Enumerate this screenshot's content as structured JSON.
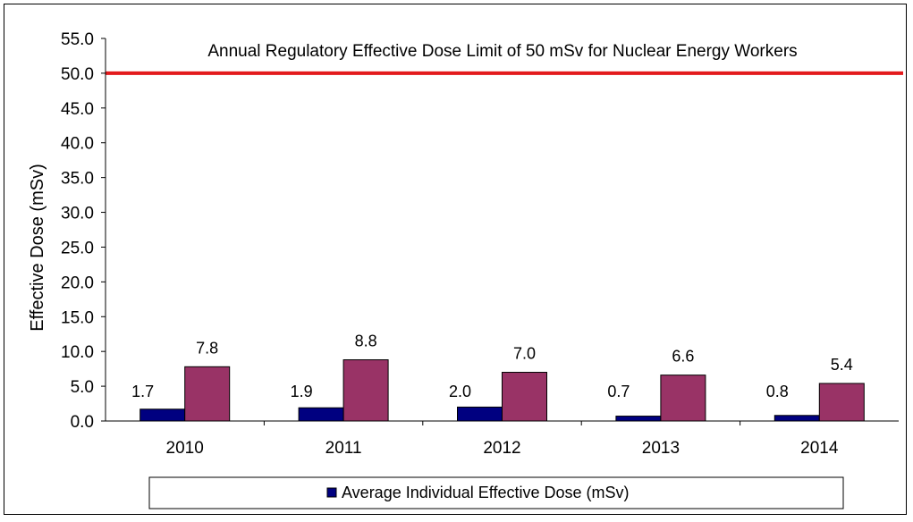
{
  "chart_data": {
    "type": "bar",
    "title": "",
    "xlabel": "",
    "ylabel": "Effective Dose (mSv)",
    "ylim": [
      0,
      55
    ],
    "ytick_step": 5,
    "yticks": [
      "0.0",
      "5.0",
      "10.0",
      "15.0",
      "20.0",
      "25.0",
      "30.0",
      "35.0",
      "40.0",
      "45.0",
      "50.0",
      "55.0"
    ],
    "categories": [
      "2010",
      "2011",
      "2012",
      "2013",
      "2014"
    ],
    "series": [
      {
        "name": "Average Individual Effective Dose (mSv)",
        "values": [
          1.7,
          1.9,
          2.0,
          0.7,
          0.8
        ],
        "labels": [
          "1.7",
          "1.9",
          "2.0",
          "0.7",
          "0.8"
        ],
        "color": "#000080"
      },
      {
        "values": [
          7.8,
          8.8,
          7.0,
          6.6,
          5.4
        ],
        "labels": [
          "7.8",
          "8.8",
          "7.0",
          "6.6",
          "5.4"
        ],
        "color": "#993366"
      }
    ],
    "reference_line": {
      "value": 50,
      "label": "Annual Regulatory Effective Dose Limit of 50 mSv for Nuclear Energy Workers",
      "color": "#e31a1c"
    },
    "grid": false,
    "legend_position": "bottom"
  }
}
